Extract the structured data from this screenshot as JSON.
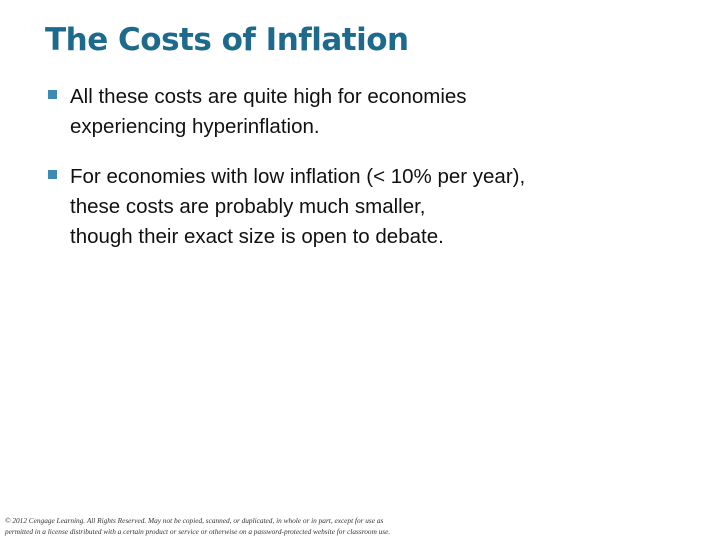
{
  "header": {
    "title": "The Costs of Inflation"
  },
  "bullets": [
    {
      "lines": [
        "All these costs are quite high for economies",
        "experiencing hyperinflation."
      ]
    },
    {
      "lines": [
        "For economies with low inflation (< 10% per year),",
        "these costs are probably much smaller,",
        "though their exact size is open to debate."
      ]
    }
  ],
  "footer": {
    "lines": [
      "© 2012 Cengage Learning. All Rights Reserved. May not be copied, scanned, or duplicated, in whole or in part, except for use as",
      "permitted in a license distributed with a certain product or service or otherwise on a password-protected website for classroom use."
    ]
  }
}
